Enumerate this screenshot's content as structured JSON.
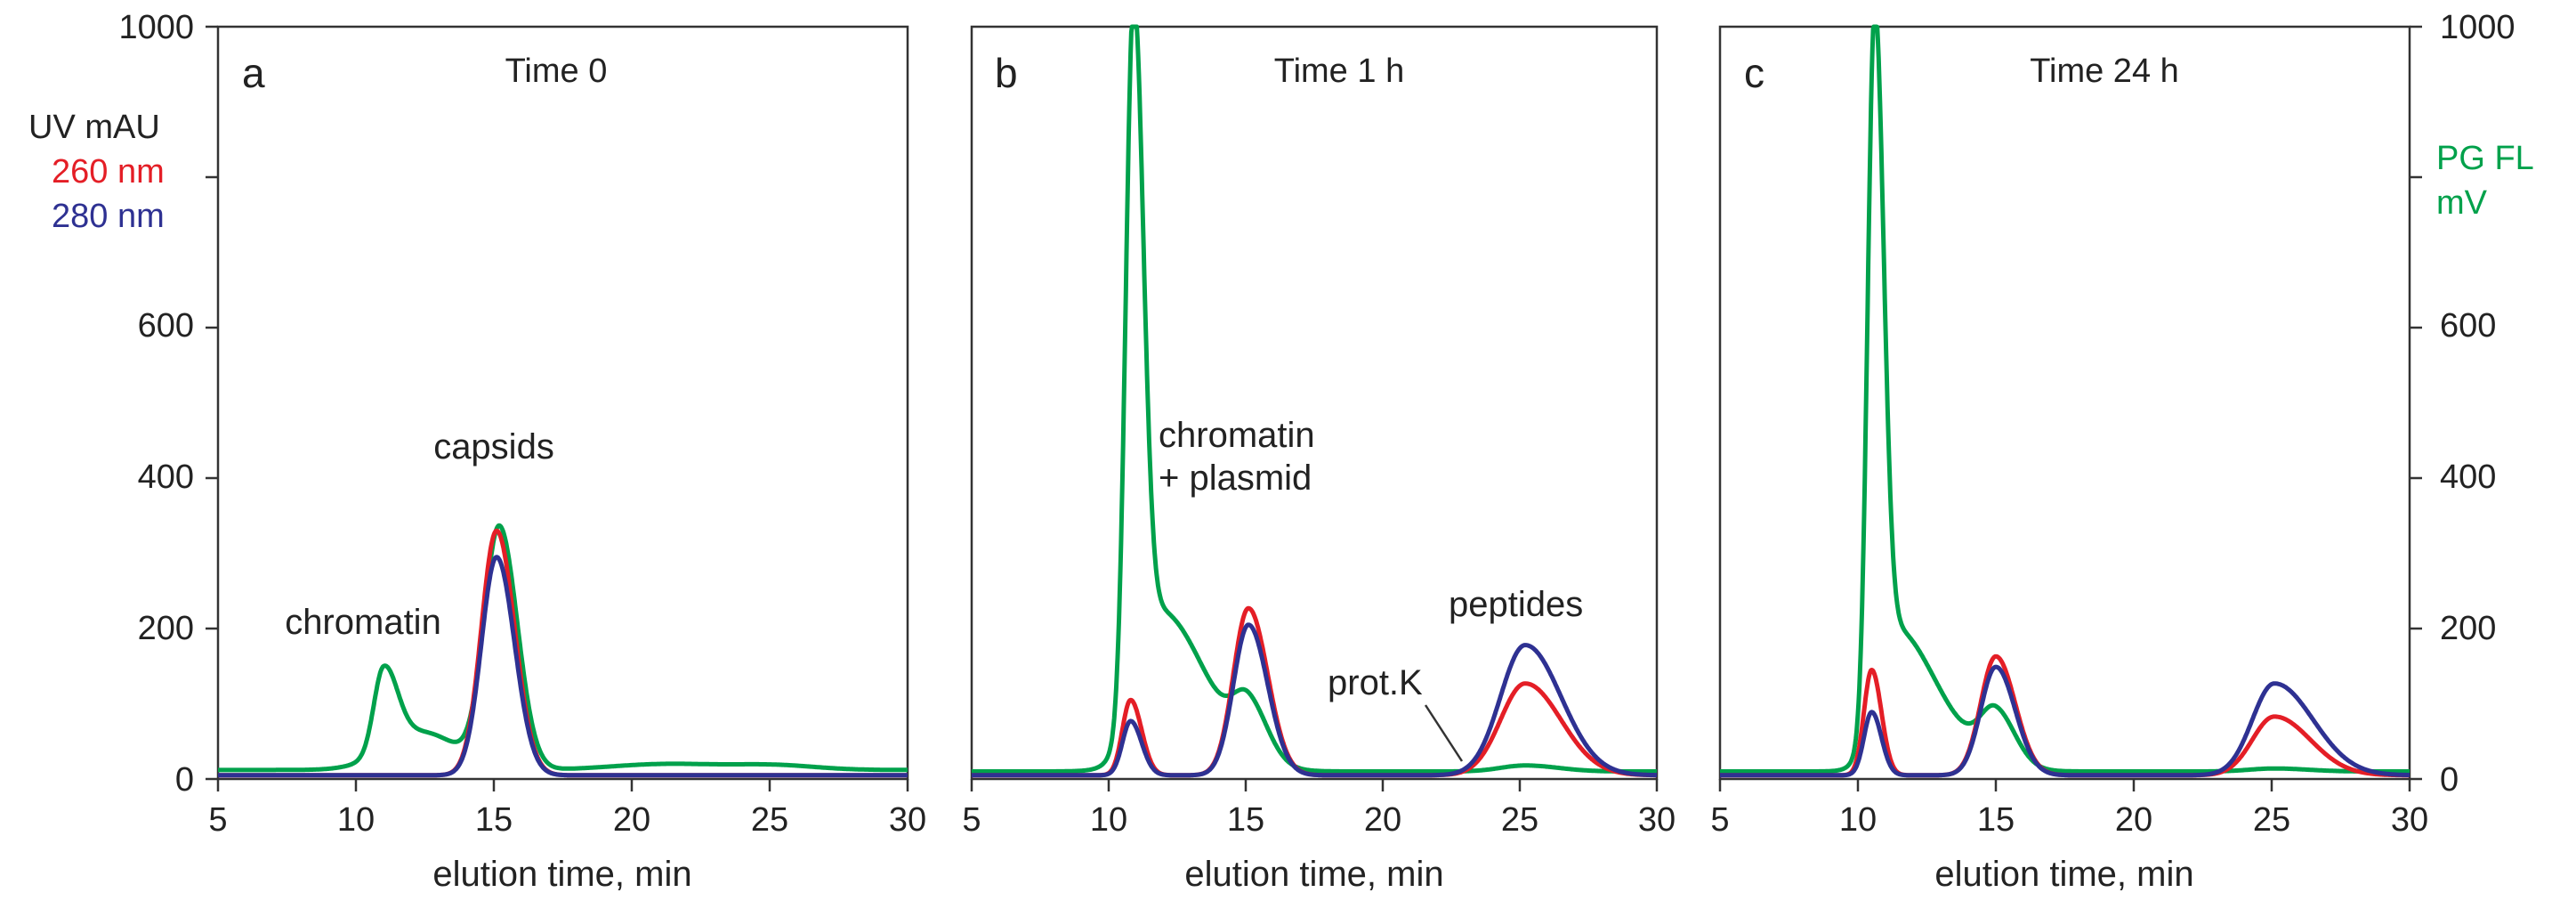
{
  "figure": {
    "left_axis": {
      "title_line1": "UV mAU",
      "legend": [
        {
          "label": "260 nm",
          "color": "#e41e26"
        },
        {
          "label": "280 nm",
          "color": "#2e3192"
        }
      ],
      "ticks": [
        "0",
        "200",
        "400",
        "600",
        "1000"
      ]
    },
    "right_axis": {
      "title_line1": "PG FL",
      "title_line2": "mV",
      "color": "#00a14b",
      "ticks": [
        "0",
        "200",
        "400",
        "600",
        "1000"
      ]
    },
    "colors": {
      "uv260": "#e41e26",
      "uv280": "#2e3192",
      "pgfl": "#00a14b"
    }
  },
  "chart_data": [
    {
      "type": "line",
      "panel": "a",
      "title": "Time 0",
      "xlabel": "elution time, min",
      "ylabel": "UV mAU / PG FL mV",
      "xlim": [
        5,
        30
      ],
      "ylim": [
        0,
        1000
      ],
      "x_ticks": [
        "5",
        "10",
        "15",
        "20",
        "25",
        "30"
      ],
      "annotations": [
        {
          "text": "capsids",
          "x": 15.1,
          "y": 430
        },
        {
          "text": "chromatin",
          "x": 10.6,
          "y": 210
        }
      ],
      "series": [
        {
          "name": "260 nm",
          "peaks": [
            [
              15.1,
              325,
              0.55,
              0.65
            ]
          ],
          "baseline": 5
        },
        {
          "name": "280 nm",
          "peaks": [
            [
              15.1,
              290,
              0.55,
              0.65
            ]
          ],
          "baseline": 5
        },
        {
          "name": "PG FL",
          "peaks": [
            [
              11.0,
              110,
              0.35,
              0.5
            ],
            [
              12.4,
              50,
              1.3,
              1.3
            ],
            [
              15.2,
              320,
              0.55,
              0.65
            ],
            [
              21.3,
              8,
              2.0,
              2.0
            ],
            [
              25.2,
              6,
              1.5,
              1.5
            ]
          ],
          "baseline": 12
        }
      ]
    },
    {
      "type": "line",
      "panel": "b",
      "title": "Time 1 h",
      "xlabel": "elution time, min",
      "ylabel": "",
      "xlim": [
        5,
        30
      ],
      "ylim": [
        0,
        1000
      ],
      "x_ticks": [
        "5",
        "10",
        "15",
        "20",
        "25",
        "30"
      ],
      "annotations": [
        {
          "text": "chromatin",
          "x": 16.7,
          "y": 440
        },
        {
          "text": "+ plasmid",
          "x": 16.5,
          "y": 385
        },
        {
          "text": "peptides",
          "x": 24.3,
          "y": 225
        },
        {
          "text": "prot.K",
          "x": 21.7,
          "y": 130
        }
      ],
      "series": [
        {
          "name": "260 nm",
          "peaks": [
            [
              10.8,
              100,
              0.3,
              0.4
            ],
            [
              15.1,
              222,
              0.55,
              0.7
            ],
            [
              25.2,
              122,
              0.9,
              1.3
            ]
          ],
          "baseline": 5
        },
        {
          "name": "280 nm",
          "peaks": [
            [
              10.8,
              72,
              0.3,
              0.4
            ],
            [
              15.1,
              200,
              0.55,
              0.7
            ],
            [
              25.2,
              173,
              0.9,
              1.3
            ]
          ],
          "baseline": 5
        },
        {
          "name": "PG FL",
          "peaks": [
            [
              10.9,
              900,
              0.28,
              0.35
            ],
            [
              11.6,
              190,
              0.7,
              1.6
            ],
            [
              13.2,
              40,
              1.5,
              1.5
            ],
            [
              15.1,
              70,
              0.55,
              0.7
            ],
            [
              25.2,
              8,
              0.9,
              1.2
            ]
          ],
          "baseline": 10
        }
      ]
    },
    {
      "type": "line",
      "panel": "c",
      "title": "Time 24 h",
      "xlabel": "elution time, min",
      "ylabel": "PG FL mV",
      "xlim": [
        5,
        30
      ],
      "ylim": [
        0,
        1000
      ],
      "x_ticks": [
        "5",
        "10",
        "15",
        "20",
        "25",
        "30"
      ],
      "annotations": [],
      "series": [
        {
          "name": "260 nm",
          "peaks": [
            [
              10.5,
              140,
              0.28,
              0.35
            ],
            [
              15.0,
              158,
              0.55,
              0.7
            ],
            [
              25.1,
              78,
              0.8,
              1.3
            ]
          ],
          "baseline": 5
        },
        {
          "name": "280 nm",
          "peaks": [
            [
              10.5,
              84,
              0.28,
              0.35
            ],
            [
              15.0,
              144,
              0.55,
              0.7
            ],
            [
              25.1,
              122,
              0.8,
              1.4
            ]
          ],
          "baseline": 5
        },
        {
          "name": "PG FL",
          "peaks": [
            [
              10.6,
              900,
              0.25,
              0.32
            ],
            [
              11.2,
              180,
              0.6,
              1.4
            ],
            [
              13.3,
              30,
              1.4,
              1.4
            ],
            [
              15.0,
              68,
              0.55,
              0.7
            ],
            [
              25.1,
              4,
              0.9,
              1.2
            ]
          ],
          "baseline": 10
        }
      ]
    }
  ]
}
